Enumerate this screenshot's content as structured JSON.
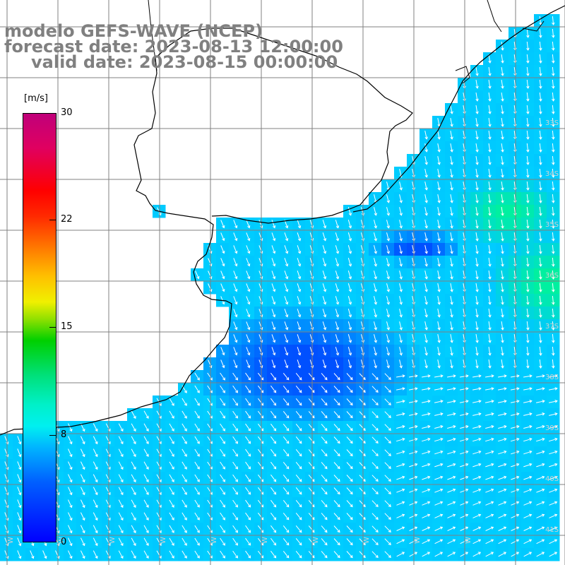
{
  "title": {
    "line1": "modelo GEFS-WAVE (NCEP)",
    "line2": "forecast date: 2023-08-13 12:00:00",
    "line3": "valid date: 2023-08-15 00:00:00"
  },
  "colorbar": {
    "unit": "[m/s]",
    "ticks": [
      "30",
      "22",
      "15",
      "8",
      "0"
    ],
    "min": 0,
    "max": 30
  },
  "lat_labels": [
    "33S",
    "34S",
    "35S",
    "36S",
    "37S",
    "38S",
    "39S",
    "40S",
    "41S"
  ],
  "lon_labels": [
    "W",
    "W",
    "W",
    "W",
    "W",
    "W",
    "W",
    "W",
    "W",
    "W"
  ],
  "colors": {
    "ocean_base": "#00c8ff",
    "ocean_dark": "#0050ff",
    "ocean_green": "#00f0a0",
    "land": "#ffffff",
    "grid": "#808080",
    "title": "#808080",
    "arrows": "#ffffff"
  }
}
